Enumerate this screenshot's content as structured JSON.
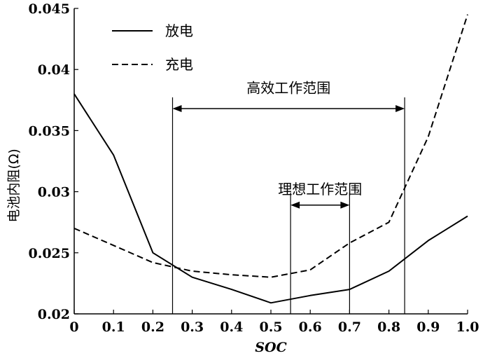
{
  "chart_data": {
    "type": "line",
    "xlabel": "SOC",
    "ylabel": "电池内阻(Ω)",
    "xlim": [
      0,
      1.0
    ],
    "ylim": [
      0.02,
      0.045
    ],
    "x_ticks": [
      "0",
      "0.1",
      "0.2",
      "0.3",
      "0.4",
      "0.5",
      "0.6",
      "0.7",
      "0.8",
      "0.9",
      "1.0"
    ],
    "y_ticks": [
      "0.02",
      "0.025",
      "0.03",
      "0.035",
      "0.04",
      "0.045"
    ],
    "grid": false,
    "legend": "top-left",
    "series": [
      {
        "name": "放电",
        "style": "solid",
        "x": [
          0,
          0.1,
          0.2,
          0.3,
          0.4,
          0.5,
          0.6,
          0.7,
          0.8,
          0.9,
          1.0
        ],
        "y": [
          0.038,
          0.033,
          0.025,
          0.023,
          0.022,
          0.0209,
          0.0215,
          0.022,
          0.0235,
          0.026,
          0.028
        ]
      },
      {
        "name": "充电",
        "style": "dashed",
        "x": [
          0,
          0.1,
          0.2,
          0.3,
          0.4,
          0.5,
          0.6,
          0.7,
          0.8,
          0.9,
          1.0
        ],
        "y": [
          0.027,
          0.0256,
          0.0242,
          0.0235,
          0.0232,
          0.023,
          0.0236,
          0.0258,
          0.0275,
          0.0345,
          0.0445
        ]
      }
    ],
    "annotations": [
      {
        "text": "高效工作范围",
        "x_start": 0.25,
        "x_end": 0.84,
        "arrow_y": 0.0368,
        "label_y": 0.0385
      },
      {
        "text": "理想工作范围",
        "x_start": 0.55,
        "x_end": 0.7,
        "arrow_y": 0.0289,
        "label_y": 0.0302
      }
    ]
  }
}
